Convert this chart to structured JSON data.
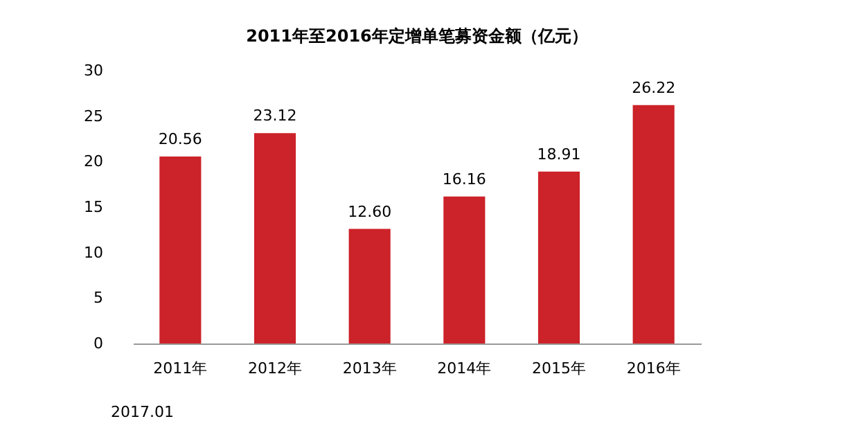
{
  "chart_data": {
    "type": "bar",
    "title": "2011年至2016年定增单笔募资金额（亿元）",
    "categories": [
      "2011年",
      "2012年",
      "2013年",
      "2014年",
      "2015年",
      "2016年"
    ],
    "values": [
      20.56,
      23.12,
      12.6,
      16.16,
      18.91,
      26.22
    ],
    "value_labels": [
      "20.56",
      "23.12",
      "12.60",
      "16.16",
      "18.91",
      "26.22"
    ],
    "color": "#cc2229",
    "ylim": [
      0,
      30
    ],
    "yticks": [
      0,
      5,
      10,
      15,
      20,
      25,
      30
    ],
    "grid": false,
    "annotations": [
      "2017.01"
    ]
  }
}
